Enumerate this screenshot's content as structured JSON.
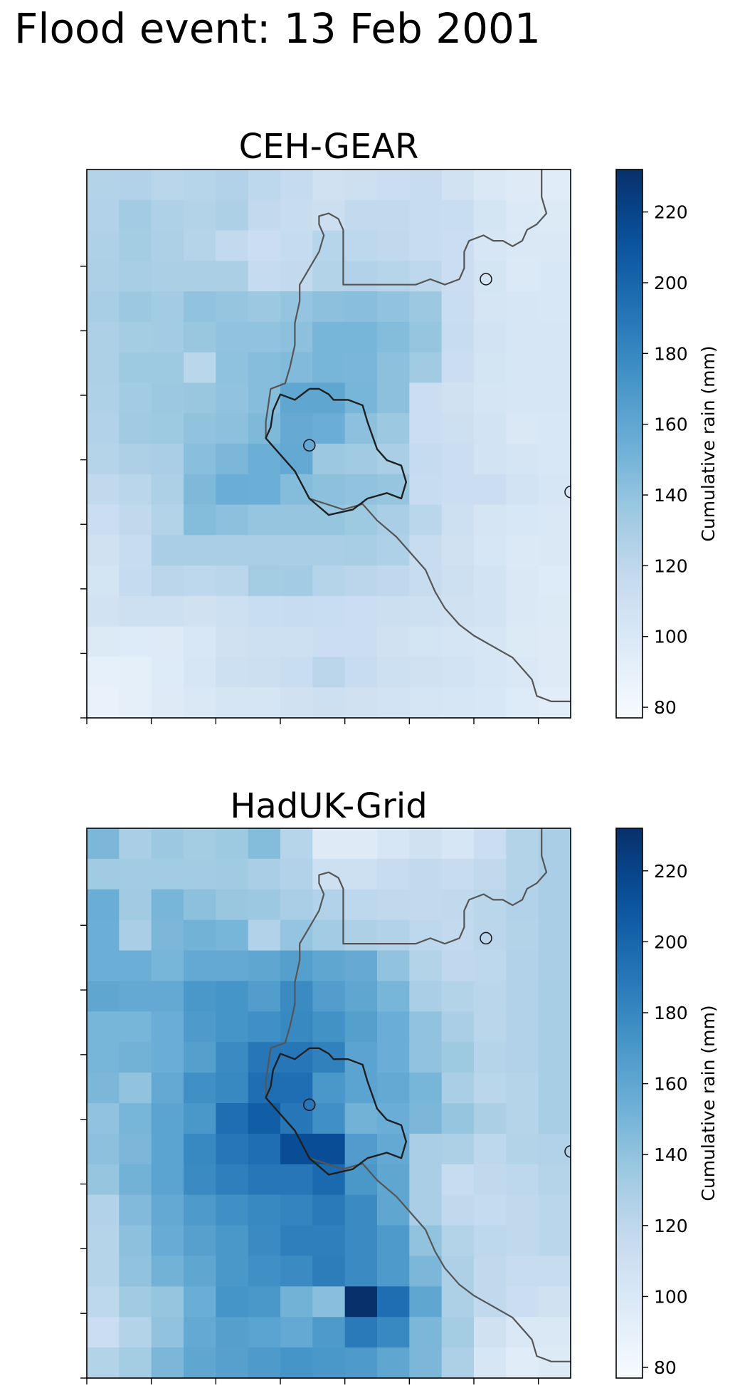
{
  "figure": {
    "title": "Flood event: 13 Feb 2001"
  },
  "colors": {
    "background": "#ffffff",
    "catchment_outline": "#555555",
    "catchment_outline_inner": "#1f1f1f",
    "colormap": "Blues"
  },
  "chart_data": [
    {
      "type": "heatmap",
      "title": "CEH-GEAR",
      "colorbar": {
        "label": "Cumulative rain (mm)",
        "range": [
          77,
          232
        ],
        "ticks": [
          80,
          100,
          120,
          140,
          160,
          180,
          200,
          220
        ]
      },
      "xticklabels": [],
      "yticklabels": [],
      "values": [
        [
          125,
          126,
          122,
          123,
          126,
          120,
          116,
          108,
          110,
          112,
          114,
          107,
          100,
          96,
          95
        ],
        [
          126,
          133,
          127,
          125,
          128,
          117,
          114,
          111,
          117,
          117,
          114,
          113,
          105,
          99,
          98
        ],
        [
          127,
          132,
          128,
          124,
          117,
          112,
          116,
          123,
          120,
          118,
          114,
          112,
          103,
          100,
          100
        ],
        [
          128,
          131,
          129,
          129,
          129,
          116,
          117,
          125,
          126,
          123,
          120,
          112,
          105,
          99,
          101
        ],
        [
          131,
          136,
          133,
          140,
          138,
          136,
          139,
          142,
          143,
          140,
          136,
          113,
          104,
          102,
          101
        ],
        [
          128,
          132,
          133,
          137,
          140,
          140,
          142,
          150,
          150,
          145,
          138,
          115,
          106,
          103,
          103
        ],
        [
          128,
          135,
          135,
          122,
          141,
          144,
          146,
          150,
          149,
          142,
          134,
          112,
          105,
          103,
          103
        ],
        [
          127,
          133,
          136,
          137,
          140,
          144,
          160,
          160,
          150,
          142,
          112,
          108,
          104,
          103,
          103
        ],
        [
          126,
          134,
          135,
          140,
          142,
          147,
          157,
          155,
          142,
          136,
          112,
          110,
          106,
          100,
          101
        ],
        [
          124,
          128,
          130,
          143,
          148,
          154,
          158,
          136,
          134,
          130,
          116,
          112,
          106,
          104,
          101
        ],
        [
          118,
          122,
          128,
          147,
          155,
          154,
          145,
          142,
          140,
          138,
          114,
          112,
          112,
          106,
          102
        ],
        [
          112,
          118,
          125,
          145,
          142,
          138,
          138,
          138,
          135,
          130,
          122,
          110,
          104,
          101,
          100
        ],
        [
          108,
          115,
          130,
          130,
          130,
          130,
          130,
          130,
          131,
          127,
          114,
          108,
          103,
          99,
          100
        ],
        [
          105,
          116,
          121,
          120,
          122,
          132,
          133,
          124,
          121,
          119,
          114,
          110,
          106,
          100,
          97
        ],
        [
          107,
          110,
          110,
          108,
          110,
          113,
          115,
          113,
          112,
          111,
          110,
          108,
          106,
          100,
          98
        ],
        [
          98,
          97,
          96,
          101,
          108,
          110,
          110,
          112,
          112,
          108,
          105,
          104,
          102,
          98,
          96
        ],
        [
          90,
          92,
          97,
          102,
          110,
          111,
          113,
          121,
          115,
          110,
          108,
          106,
          103,
          100,
          96
        ],
        [
          88,
          91,
          96,
          100,
          104,
          104,
          108,
          110,
          108,
          106,
          104,
          102,
          101,
          97,
          94
        ]
      ],
      "stations": [
        "station-1",
        "station-2",
        "station-3"
      ]
    },
    {
      "type": "heatmap",
      "title": "HadUK-Grid",
      "colorbar": {
        "label": "Cumulative rain (mm)",
        "range": [
          77,
          232
        ],
        "ticks": [
          80,
          100,
          120,
          140,
          160,
          180,
          200,
          220
        ]
      },
      "xticklabels": [],
      "yticklabels": [],
      "values": [
        [
          148,
          130,
          136,
          132,
          135,
          145,
          123,
          96,
          96,
          103,
          108,
          103,
          112,
          125,
          130
        ],
        [
          134,
          133,
          133,
          133,
          134,
          130,
          126,
          110,
          110,
          114,
          117,
          114,
          118,
          125,
          130
        ],
        [
          155,
          134,
          150,
          142,
          137,
          136,
          130,
          126,
          120,
          118,
          117,
          118,
          122,
          126,
          130
        ],
        [
          154,
          130,
          148,
          152,
          150,
          126,
          139,
          133,
          128,
          126,
          120,
          117,
          121,
          125,
          130
        ],
        [
          154,
          154,
          150,
          158,
          158,
          160,
          165,
          160,
          157,
          140,
          125,
          119,
          120,
          126,
          130
        ],
        [
          160,
          158,
          158,
          170,
          172,
          166,
          178,
          166,
          160,
          150,
          130,
          125,
          122,
          126,
          131
        ],
        [
          150,
          150,
          155,
          168,
          172,
          175,
          180,
          174,
          165,
          155,
          140,
          130,
          122,
          126,
          131
        ],
        [
          150,
          152,
          155,
          165,
          178,
          190,
          190,
          184,
          162,
          155,
          140,
          135,
          124,
          126,
          131
        ],
        [
          148,
          140,
          158,
          175,
          180,
          195,
          195,
          170,
          162,
          158,
          150,
          130,
          122,
          124,
          131
        ],
        [
          140,
          150,
          162,
          170,
          195,
          205,
          190,
          175,
          152,
          155,
          148,
          138,
          129,
          124,
          131
        ],
        [
          142,
          148,
          162,
          180,
          190,
          195,
          215,
          215,
          167,
          158,
          130,
          128,
          120,
          125,
          126
        ],
        [
          138,
          152,
          162,
          178,
          185,
          190,
          190,
          198,
          170,
          160,
          130,
          115,
          118,
          120,
          124
        ],
        [
          126,
          146,
          158,
          168,
          175,
          180,
          182,
          188,
          178,
          160,
          130,
          118,
          116,
          118,
          122
        ],
        [
          124,
          142,
          156,
          164,
          170,
          178,
          185,
          185,
          178,
          168,
          140,
          125,
          120,
          118,
          122
        ],
        [
          124,
          140,
          152,
          160,
          170,
          175,
          178,
          186,
          178,
          168,
          148,
          128,
          118,
          115,
          115
        ],
        [
          120,
          134,
          138,
          155,
          172,
          170,
          152,
          143,
          232,
          195,
          160,
          128,
          118,
          112,
          108
        ],
        [
          112,
          125,
          140,
          158,
          165,
          162,
          158,
          168,
          188,
          180,
          148,
          132,
          108,
          100,
          100
        ],
        [
          125,
          132,
          148,
          160,
          164,
          168,
          172,
          170,
          168,
          160,
          148,
          128,
          103,
          95,
          98
        ]
      ],
      "stations": [
        "station-1",
        "station-2",
        "station-3"
      ]
    }
  ]
}
